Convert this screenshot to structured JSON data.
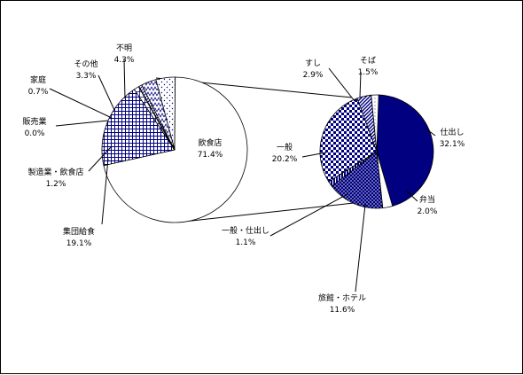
{
  "chart_data": [
    {
      "type": "pie",
      "slices": [
        {
          "label": "飲食店",
          "value": 71.4,
          "display": "71.4%",
          "pattern": "white"
        },
        {
          "label": "集団給食",
          "value": 19.1,
          "display": "19.1%",
          "pattern": "grid"
        },
        {
          "label": "製造業・飲食店",
          "value": 1.2,
          "display": "1.2%",
          "pattern": "light-grid"
        },
        {
          "label": "販売業",
          "value": 0.0,
          "display": "0.0%",
          "pattern": "solid-dark"
        },
        {
          "label": "家庭",
          "value": 0.7,
          "display": "0.7%",
          "pattern": "diagonal"
        },
        {
          "label": "その他",
          "value": 3.3,
          "display": "3.3%",
          "pattern": "zigzag"
        },
        {
          "label": "不明",
          "value": 4.3,
          "display": "4.3%",
          "pattern": "dots"
        }
      ]
    },
    {
      "type": "pie",
      "slices": [
        {
          "label": "仕出し",
          "value": 32.1,
          "display": "32.1%",
          "pattern": "solid-navy"
        },
        {
          "label": "弁当",
          "value": 2.0,
          "display": "2.0%",
          "pattern": "white"
        },
        {
          "label": "旅館・ホテル",
          "value": 11.6,
          "display": "11.6%",
          "pattern": "navy-dots"
        },
        {
          "label": "一般・仕出し",
          "value": 1.1,
          "display": "1.1%",
          "pattern": "navy-vertical"
        },
        {
          "label": "一般",
          "value": 20.2,
          "display": "20.2%",
          "pattern": "checker"
        },
        {
          "label": "すし",
          "value": 2.9,
          "display": "2.9%",
          "pattern": "navy-diagonal"
        },
        {
          "label": "そば",
          "value": 1.5,
          "display": "1.5%",
          "pattern": "light"
        }
      ]
    }
  ],
  "colors": {
    "navy": "#000080",
    "ink": "#000000",
    "background": "#ffffff"
  }
}
